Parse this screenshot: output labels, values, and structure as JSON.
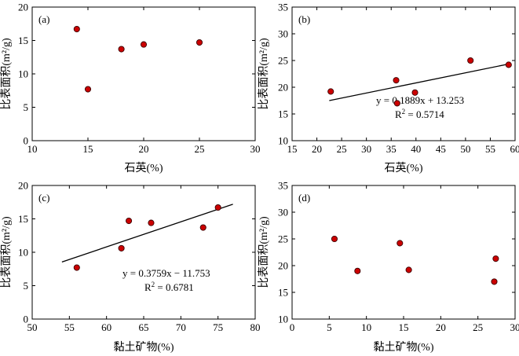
{
  "chart_data": [
    {
      "type": "scatter",
      "panel": "(a)",
      "xlabel": "石英(%)",
      "ylabel": "比表面积(m²/g)",
      "xlim": [
        10,
        30
      ],
      "ylim": [
        0,
        20
      ],
      "xticks": [
        "10",
        "15",
        "20",
        "25",
        "30"
      ],
      "yticks": [
        "0",
        "5",
        "10",
        "15",
        "20"
      ],
      "grid": false,
      "points": [
        {
          "x": 14.0,
          "y": 16.7
        },
        {
          "x": 15.0,
          "y": 7.7
        },
        {
          "x": 18.0,
          "y": 13.7
        },
        {
          "x": 20.0,
          "y": 14.4
        },
        {
          "x": 25.0,
          "y": 14.7
        }
      ]
    },
    {
      "type": "scatter",
      "panel": "(b)",
      "xlabel": "石英(%)",
      "ylabel": "比表面积(m²/g)",
      "xlim": [
        15,
        60
      ],
      "ylim": [
        10,
        35
      ],
      "xticks": [
        "15",
        "20",
        "25",
        "30",
        "35",
        "40",
        "45",
        "50",
        "55",
        "60"
      ],
      "yticks": [
        "10",
        "15",
        "20",
        "25",
        "30",
        "35"
      ],
      "grid": false,
      "points": [
        {
          "x": 22.8,
          "y": 19.2
        },
        {
          "x": 36.0,
          "y": 21.3
        },
        {
          "x": 36.2,
          "y": 17.0
        },
        {
          "x": 39.8,
          "y": 19.0
        },
        {
          "x": 51.0,
          "y": 25.0
        },
        {
          "x": 58.7,
          "y": 24.2
        }
      ],
      "trendline": {
        "slope": 0.1889,
        "intercept": 13.253,
        "x_range": [
          22.5,
          59
        ]
      },
      "equation": "y = 0.1889x + 13.253",
      "r2_prefix": "R",
      "r2_value": " = 0.5714"
    },
    {
      "type": "scatter",
      "panel": "(c)",
      "xlabel": "黏土矿物(%)",
      "ylabel": "比表面积(m²/g)",
      "xlim": [
        50,
        80
      ],
      "ylim": [
        0,
        20
      ],
      "xticks": [
        "50",
        "55",
        "60",
        "65",
        "70",
        "75",
        "80"
      ],
      "yticks": [
        "0",
        "5",
        "10",
        "15",
        "20"
      ],
      "grid": false,
      "points": [
        {
          "x": 56.0,
          "y": 7.7
        },
        {
          "x": 62.0,
          "y": 10.6
        },
        {
          "x": 63.0,
          "y": 14.7
        },
        {
          "x": 66.0,
          "y": 14.4
        },
        {
          "x": 73.0,
          "y": 13.7
        },
        {
          "x": 75.0,
          "y": 16.7
        }
      ],
      "trendline": {
        "slope": 0.3759,
        "intercept": -11.753,
        "x_range": [
          54,
          77
        ]
      },
      "equation": "y = 0.3759x − 11.753",
      "r2_prefix": "R",
      "r2_value": " = 0.6781"
    },
    {
      "type": "scatter",
      "panel": "(d)",
      "xlabel": "黏土矿物(%)",
      "ylabel": "比表面积(m²/g)",
      "xlim": [
        0,
        30
      ],
      "ylim": [
        10,
        35
      ],
      "xticks": [
        "0",
        "5",
        "10",
        "15",
        "20",
        "25",
        "30"
      ],
      "yticks": [
        "10",
        "15",
        "20",
        "25",
        "30",
        "35"
      ],
      "grid": false,
      "points": [
        {
          "x": 5.7,
          "y": 25.0
        },
        {
          "x": 8.8,
          "y": 19.0
        },
        {
          "x": 14.5,
          "y": 24.2
        },
        {
          "x": 15.7,
          "y": 19.2
        },
        {
          "x": 27.2,
          "y": 17.0
        },
        {
          "x": 27.4,
          "y": 21.3
        }
      ]
    }
  ],
  "colors": {
    "marker_fill": "#cc0000",
    "marker_stroke": "#3a0000",
    "axis": "#000000"
  }
}
